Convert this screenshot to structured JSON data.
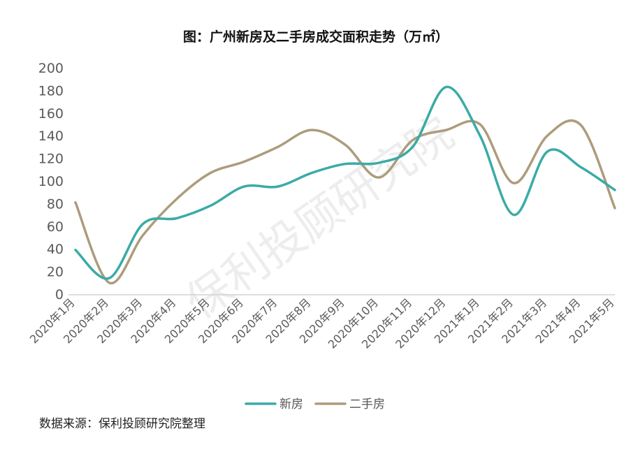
{
  "chart_data": {
    "type": "line",
    "title": "图：广州新房及二手房成交面积走势（万㎡）",
    "categories": [
      "2020年1月",
      "2020年2月",
      "2020年3月",
      "2020年4月",
      "2020年5月",
      "2020年6月",
      "2020年7月",
      "2020年8月",
      "2020年9月",
      "2020年10月",
      "2020年11月",
      "2020年12月",
      "2021年1月",
      "2021年2月",
      "2021年3月",
      "2021年4月",
      "2021年5月"
    ],
    "series": [
      {
        "name": "新房",
        "color": "#3aaba6",
        "values": [
          39,
          14,
          62,
          67,
          78,
          95,
          95,
          107,
          115,
          116,
          130,
          183,
          140,
          70,
          126,
          112,
          92
        ]
      },
      {
        "name": "二手房",
        "color": "#ad9c7c",
        "values": [
          81,
          10,
          52,
          84,
          107,
          117,
          130,
          145,
          132,
          103,
          136,
          145,
          150,
          98,
          140,
          149,
          76
        ]
      }
    ],
    "ylim": [
      0,
      200
    ],
    "yticks": [
      "0",
      "20",
      "40",
      "60",
      "80",
      "100",
      "120",
      "140",
      "160",
      "180",
      "200"
    ],
    "xlabel": "",
    "ylabel": "",
    "grid": false,
    "legend_position": "bottom"
  },
  "watermark": "保利投顾研究院",
  "source_note": "数据来源：保利投顾研究院整理"
}
